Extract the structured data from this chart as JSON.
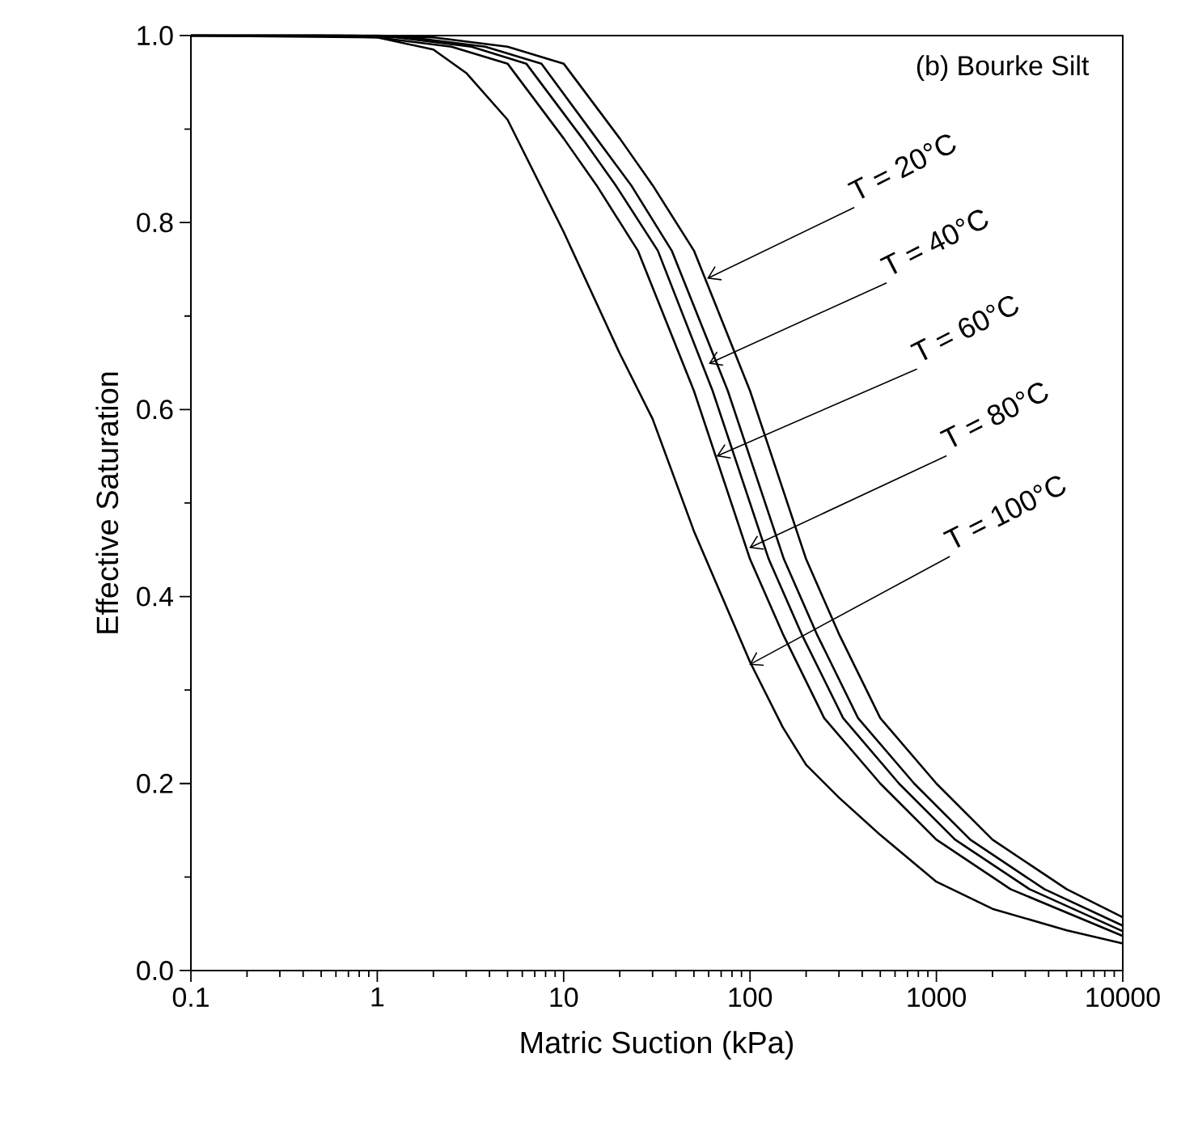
{
  "chart_data": {
    "type": "line",
    "xlabel": "Matric Suction (kPa)",
    "ylabel": "Effective Saturation",
    "log": "x",
    "xlim": [
      0.1,
      10000
    ],
    "ylim": [
      0,
      1
    ],
    "xticks": [
      0.1,
      1,
      10,
      100,
      1000,
      10000
    ],
    "yticks": [
      {
        "value": 0,
        "label": "0.0"
      },
      {
        "value": 0.2,
        "label": "0.2"
      },
      {
        "value": 0.4,
        "label": "0.4"
      },
      {
        "value": 0.6,
        "label": "0.6"
      },
      {
        "value": 0.8,
        "label": "0.8"
      },
      {
        "value": 1,
        "label": "1.0"
      }
    ],
    "series": [
      {
        "color": "#000000",
        "x": [
          0.1,
          1,
          2,
          5,
          10,
          20,
          30,
          50,
          100,
          200,
          300,
          500,
          1000,
          2000,
          5000,
          10000
        ],
        "values": [
          1,
          1,
          0.998,
          0.988,
          0.97,
          0.89,
          0.84,
          0.77,
          0.62,
          0.44,
          0.36,
          0.27,
          0.2,
          0.14,
          0.087,
          0.057
        ]
      },
      {
        "color": "#000000",
        "x": [
          0.1,
          0.76,
          1.5,
          3.8,
          7.6,
          15,
          23,
          38,
          76,
          152,
          228,
          380,
          760,
          1520,
          3800,
          10000
        ],
        "values": [
          1,
          1,
          0.998,
          0.988,
          0.97,
          0.89,
          0.84,
          0.77,
          0.62,
          0.44,
          0.36,
          0.27,
          0.2,
          0.14,
          0.087,
          0.048
        ]
      },
      {
        "color": "#000000",
        "x": [
          0.1,
          0.63,
          1.26,
          3.2,
          6.3,
          12.6,
          19,
          32,
          63,
          126,
          189,
          316,
          630,
          1260,
          3160,
          10000
        ],
        "values": [
          1,
          1,
          0.998,
          0.988,
          0.97,
          0.89,
          0.84,
          0.77,
          0.62,
          0.44,
          0.36,
          0.27,
          0.2,
          0.14,
          0.087,
          0.042
        ]
      },
      {
        "color": "#000000",
        "x": [
          0.1,
          0.5,
          1,
          2.5,
          5,
          10,
          15,
          25,
          50,
          100,
          150,
          250,
          500,
          1000,
          2500,
          10000
        ],
        "values": [
          1,
          1,
          0.998,
          0.988,
          0.97,
          0.89,
          0.84,
          0.77,
          0.62,
          0.44,
          0.36,
          0.27,
          0.2,
          0.14,
          0.087,
          0.037
        ]
      },
      {
        "color": "#000000",
        "x": [
          0.1,
          1,
          2,
          3,
          5,
          10,
          20,
          30,
          50,
          100,
          150,
          200,
          300,
          500,
          1000,
          2000,
          5000,
          10000
        ],
        "values": [
          1,
          0.998,
          0.985,
          0.96,
          0.91,
          0.79,
          0.66,
          0.59,
          0.47,
          0.33,
          0.26,
          0.22,
          0.185,
          0.145,
          0.095,
          0.066,
          0.043,
          0.029
        ]
      }
    ],
    "annotations": [
      "(b) Bourke Silt",
      {
        "text": "T = 20°C",
        "x": 58.8,
        "y": 0.74
      },
      {
        "text": "T = 40°C",
        "x": 60,
        "y": 0.649
      },
      {
        "text": "T = 60°C",
        "x": 66,
        "y": 0.55
      },
      {
        "text": "T = 80°C",
        "x": 99,
        "y": 0.452
      },
      {
        "text": "T = 100°C",
        "x": 99,
        "y": 0.327
      }
    ]
  }
}
